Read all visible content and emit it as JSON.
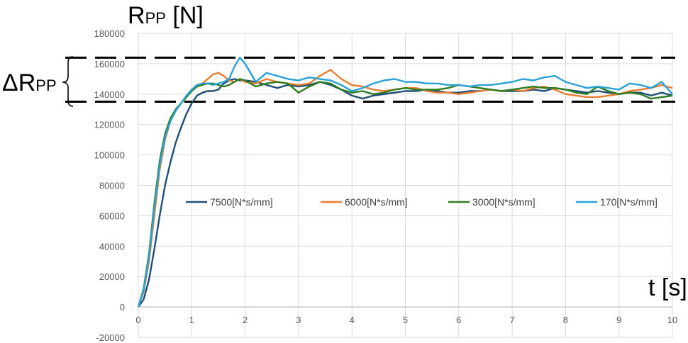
{
  "chart_data": {
    "type": "line",
    "title": "",
    "ylabel_main": "R",
    "ylabel_sub": "PP",
    "ylabel_unit": " [N]",
    "xlabel": "t [s]",
    "band_label_main": "ΔR",
    "band_label_sub": "PP",
    "xlim": [
      0,
      10
    ],
    "ylim": [
      -20000,
      180000
    ],
    "xticks": [
      0,
      1,
      2,
      3,
      4,
      5,
      6,
      7,
      8,
      9,
      10
    ],
    "yticks": [
      -20000,
      0,
      20000,
      40000,
      60000,
      80000,
      100000,
      120000,
      140000,
      160000,
      180000
    ],
    "grid": true,
    "legend_position": "center-right",
    "band": {
      "upper": 164000,
      "lower": 135000
    },
    "x": [
      0,
      0.1,
      0.2,
      0.3,
      0.4,
      0.5,
      0.6,
      0.7,
      0.8,
      0.9,
      1.0,
      1.1,
      1.2,
      1.3,
      1.4,
      1.5,
      1.6,
      1.7,
      1.8,
      1.9,
      2.0,
      2.2,
      2.4,
      2.6,
      2.8,
      3.0,
      3.2,
      3.4,
      3.6,
      3.8,
      4.0,
      4.2,
      4.4,
      4.6,
      4.8,
      5.0,
      5.2,
      5.4,
      5.6,
      5.8,
      6.0,
      6.2,
      6.4,
      6.6,
      6.8,
      7.0,
      7.2,
      7.4,
      7.6,
      7.8,
      8.0,
      8.2,
      8.4,
      8.6,
      8.8,
      9.0,
      9.2,
      9.4,
      9.6,
      9.8,
      10.0
    ],
    "series": [
      {
        "name": "7500[N*s/mm]",
        "color": "#1f4e79",
        "values": [
          0,
          5000,
          18000,
          38000,
          60000,
          80000,
          95000,
          108000,
          118000,
          127000,
          134000,
          139000,
          141000,
          142000,
          142000,
          143000,
          147000,
          149000,
          150000,
          149000,
          149000,
          148000,
          146000,
          144000,
          146000,
          145000,
          146000,
          148000,
          146000,
          143000,
          139000,
          137000,
          139000,
          140000,
          141000,
          142000,
          142000,
          143000,
          142000,
          141000,
          141000,
          142000,
          142000,
          143000,
          142000,
          142000,
          142000,
          143000,
          142000,
          144000,
          143000,
          142000,
          141000,
          142000,
          141000,
          140000,
          141000,
          141000,
          139000,
          141000,
          139000
        ]
      },
      {
        "name": "6000[N*s/mm]",
        "color": "#ed7d31",
        "values": [
          0,
          10000,
          30000,
          60000,
          90000,
          110000,
          122000,
          129000,
          134000,
          138000,
          143000,
          146000,
          147000,
          150000,
          153000,
          154000,
          152000,
          149000,
          148000,
          150000,
          148000,
          147000,
          150000,
          148000,
          147000,
          146000,
          147000,
          152000,
          156000,
          150000,
          146000,
          145000,
          143000,
          142000,
          143000,
          144000,
          144000,
          142000,
          141000,
          141000,
          140000,
          141000,
          142000,
          143000,
          142000,
          143000,
          142000,
          144000,
          145000,
          143000,
          140000,
          139000,
          138000,
          138000,
          139000,
          140000,
          142000,
          143000,
          144000,
          146000,
          144000
        ]
      },
      {
        "name": "3000[N*s/mm]",
        "color": "#2e7d1f",
        "values": [
          0,
          12000,
          35000,
          68000,
          96000,
          114000,
          124000,
          130000,
          134000,
          138000,
          142000,
          145000,
          146000,
          147000,
          147000,
          146000,
          145000,
          146000,
          148000,
          150000,
          149000,
          145000,
          147000,
          148000,
          147000,
          141000,
          145000,
          148000,
          147000,
          143000,
          141000,
          142000,
          140000,
          141000,
          143000,
          144000,
          143000,
          143000,
          143000,
          144000,
          146000,
          145000,
          144000,
          143000,
          142000,
          143000,
          144000,
          145000,
          144000,
          144000,
          143000,
          141000,
          140000,
          145000,
          142000,
          140000,
          141000,
          140000,
          137000,
          138000,
          139000
        ]
      },
      {
        "name": "170[N*s/mm]",
        "color": "#27a1d8",
        "values": [
          0,
          11000,
          33000,
          65000,
          93000,
          112000,
          122000,
          129000,
          134000,
          139000,
          143000,
          146000,
          147000,
          147000,
          146000,
          147000,
          148000,
          150000,
          158000,
          164000,
          160000,
          148000,
          154000,
          152000,
          150000,
          149000,
          151000,
          150000,
          149000,
          146000,
          142000,
          144000,
          147000,
          149000,
          150000,
          148000,
          148000,
          147000,
          147000,
          146000,
          146000,
          145000,
          146000,
          146000,
          147000,
          148000,
          150000,
          149000,
          151000,
          152000,
          148000,
          146000,
          144000,
          145000,
          144000,
          143000,
          147000,
          146000,
          144000,
          148000,
          140000
        ]
      }
    ]
  }
}
